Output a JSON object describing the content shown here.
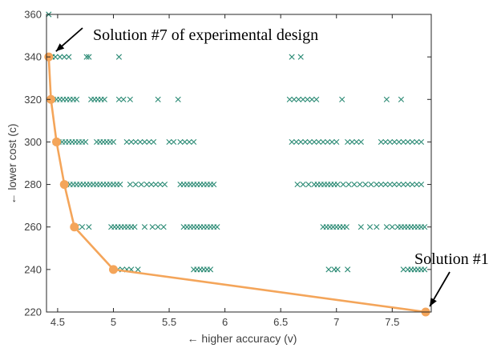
{
  "chart_data": {
    "type": "scatter",
    "xlabel": "← higher accuracy (v)",
    "ylabel": "← lower cost (c)",
    "xlim": [
      4.4,
      7.85
    ],
    "ylim": [
      220,
      360
    ],
    "xticks": [
      4.5,
      5,
      5.5,
      6,
      6.5,
      7,
      7.5
    ],
    "yticks": [
      220,
      240,
      260,
      280,
      300,
      320,
      340,
      360
    ],
    "grid": false,
    "colors": {
      "scatter": "#2a8a74",
      "front": "#f4a55a",
      "axis": "#262626"
    },
    "scatter_series": {
      "marker": "x",
      "points": [
        [
          4.42,
          360
        ],
        [
          4.45,
          340
        ],
        [
          4.48,
          340
        ],
        [
          4.52,
          340
        ],
        [
          4.56,
          340
        ],
        [
          4.6,
          340
        ],
        [
          4.76,
          340
        ],
        [
          4.78,
          340
        ],
        [
          5.05,
          340
        ],
        [
          6.6,
          340
        ],
        [
          6.68,
          340
        ],
        [
          4.46,
          320
        ],
        [
          4.49,
          320
        ],
        [
          4.52,
          320
        ],
        [
          4.55,
          320
        ],
        [
          4.58,
          320
        ],
        [
          4.61,
          320
        ],
        [
          4.64,
          320
        ],
        [
          4.67,
          320
        ],
        [
          4.8,
          320
        ],
        [
          4.83,
          320
        ],
        [
          4.86,
          320
        ],
        [
          4.89,
          320
        ],
        [
          4.92,
          320
        ],
        [
          5.05,
          320
        ],
        [
          5.09,
          320
        ],
        [
          5.15,
          320
        ],
        [
          5.4,
          320
        ],
        [
          5.58,
          320
        ],
        [
          6.58,
          320
        ],
        [
          6.62,
          320
        ],
        [
          6.66,
          320
        ],
        [
          6.7,
          320
        ],
        [
          6.74,
          320
        ],
        [
          6.78,
          320
        ],
        [
          6.82,
          320
        ],
        [
          7.05,
          320
        ],
        [
          7.45,
          320
        ],
        [
          7.58,
          320
        ],
        [
          4.48,
          300
        ],
        [
          4.51,
          300
        ],
        [
          4.54,
          300
        ],
        [
          4.57,
          300
        ],
        [
          4.6,
          300
        ],
        [
          4.63,
          300
        ],
        [
          4.66,
          300
        ],
        [
          4.69,
          300
        ],
        [
          4.72,
          300
        ],
        [
          4.75,
          300
        ],
        [
          4.85,
          300
        ],
        [
          4.88,
          300
        ],
        [
          4.91,
          300
        ],
        [
          4.94,
          300
        ],
        [
          4.97,
          300
        ],
        [
          5.0,
          300
        ],
        [
          5.12,
          300
        ],
        [
          5.16,
          300
        ],
        [
          5.2,
          300
        ],
        [
          5.24,
          300
        ],
        [
          5.28,
          300
        ],
        [
          5.32,
          300
        ],
        [
          5.36,
          300
        ],
        [
          5.5,
          300
        ],
        [
          5.54,
          300
        ],
        [
          5.6,
          300
        ],
        [
          5.64,
          300
        ],
        [
          5.68,
          300
        ],
        [
          5.72,
          300
        ],
        [
          6.6,
          300
        ],
        [
          6.64,
          300
        ],
        [
          6.68,
          300
        ],
        [
          6.72,
          300
        ],
        [
          6.76,
          300
        ],
        [
          6.8,
          300
        ],
        [
          6.84,
          300
        ],
        [
          6.88,
          300
        ],
        [
          6.92,
          300
        ],
        [
          6.96,
          300
        ],
        [
          7.0,
          300
        ],
        [
          7.1,
          300
        ],
        [
          7.14,
          300
        ],
        [
          7.18,
          300
        ],
        [
          7.22,
          300
        ],
        [
          7.4,
          300
        ],
        [
          7.44,
          300
        ],
        [
          7.48,
          300
        ],
        [
          7.52,
          300
        ],
        [
          7.56,
          300
        ],
        [
          7.6,
          300
        ],
        [
          7.64,
          300
        ],
        [
          7.68,
          300
        ],
        [
          7.72,
          300
        ],
        [
          7.76,
          300
        ],
        [
          4.58,
          280
        ],
        [
          4.61,
          280
        ],
        [
          4.64,
          280
        ],
        [
          4.67,
          280
        ],
        [
          4.7,
          280
        ],
        [
          4.73,
          280
        ],
        [
          4.76,
          280
        ],
        [
          4.79,
          280
        ],
        [
          4.82,
          280
        ],
        [
          4.85,
          280
        ],
        [
          4.88,
          280
        ],
        [
          4.91,
          280
        ],
        [
          4.94,
          280
        ],
        [
          4.97,
          280
        ],
        [
          5.0,
          280
        ],
        [
          5.03,
          280
        ],
        [
          5.06,
          280
        ],
        [
          5.15,
          280
        ],
        [
          5.2,
          280
        ],
        [
          5.25,
          280
        ],
        [
          5.3,
          280
        ],
        [
          5.34,
          280
        ],
        [
          5.38,
          280
        ],
        [
          5.42,
          280
        ],
        [
          5.46,
          280
        ],
        [
          5.6,
          280
        ],
        [
          5.63,
          280
        ],
        [
          5.66,
          280
        ],
        [
          5.69,
          280
        ],
        [
          5.72,
          280
        ],
        [
          5.75,
          280
        ],
        [
          5.78,
          280
        ],
        [
          5.81,
          280
        ],
        [
          5.84,
          280
        ],
        [
          5.87,
          280
        ],
        [
          5.9,
          280
        ],
        [
          6.65,
          280
        ],
        [
          6.7,
          280
        ],
        [
          6.75,
          280
        ],
        [
          6.8,
          280
        ],
        [
          6.83,
          280
        ],
        [
          6.86,
          280
        ],
        [
          6.89,
          280
        ],
        [
          6.92,
          280
        ],
        [
          6.95,
          280
        ],
        [
          6.98,
          280
        ],
        [
          7.01,
          280
        ],
        [
          7.06,
          280
        ],
        [
          7.11,
          280
        ],
        [
          7.16,
          280
        ],
        [
          7.21,
          280
        ],
        [
          7.26,
          280
        ],
        [
          7.31,
          280
        ],
        [
          7.36,
          280
        ],
        [
          7.4,
          280
        ],
        [
          7.44,
          280
        ],
        [
          7.48,
          280
        ],
        [
          7.52,
          280
        ],
        [
          7.56,
          280
        ],
        [
          7.6,
          280
        ],
        [
          7.64,
          280
        ],
        [
          7.68,
          280
        ],
        [
          7.72,
          280
        ],
        [
          7.76,
          280
        ],
        [
          4.67,
          260
        ],
        [
          4.72,
          260
        ],
        [
          4.78,
          260
        ],
        [
          4.98,
          260
        ],
        [
          5.01,
          260
        ],
        [
          5.04,
          260
        ],
        [
          5.07,
          260
        ],
        [
          5.1,
          260
        ],
        [
          5.13,
          260
        ],
        [
          5.16,
          260
        ],
        [
          5.19,
          260
        ],
        [
          5.28,
          260
        ],
        [
          5.35,
          260
        ],
        [
          5.4,
          260
        ],
        [
          5.45,
          260
        ],
        [
          5.63,
          260
        ],
        [
          5.66,
          260
        ],
        [
          5.69,
          260
        ],
        [
          5.72,
          260
        ],
        [
          5.75,
          260
        ],
        [
          5.78,
          260
        ],
        [
          5.81,
          260
        ],
        [
          5.84,
          260
        ],
        [
          5.87,
          260
        ],
        [
          5.9,
          260
        ],
        [
          5.93,
          260
        ],
        [
          6.88,
          260
        ],
        [
          6.91,
          260
        ],
        [
          6.94,
          260
        ],
        [
          6.97,
          260
        ],
        [
          7.0,
          260
        ],
        [
          7.03,
          260
        ],
        [
          7.06,
          260
        ],
        [
          7.09,
          260
        ],
        [
          7.22,
          260
        ],
        [
          7.3,
          260
        ],
        [
          7.36,
          260
        ],
        [
          7.45,
          260
        ],
        [
          7.5,
          260
        ],
        [
          7.55,
          260
        ],
        [
          7.58,
          260
        ],
        [
          7.61,
          260
        ],
        [
          7.64,
          260
        ],
        [
          7.67,
          260
        ],
        [
          7.7,
          260
        ],
        [
          7.73,
          260
        ],
        [
          7.76,
          260
        ],
        [
          7.79,
          260
        ],
        [
          5.0,
          240
        ],
        [
          5.04,
          240
        ],
        [
          5.08,
          240
        ],
        [
          5.12,
          240
        ],
        [
          5.16,
          240
        ],
        [
          5.22,
          240
        ],
        [
          5.72,
          240
        ],
        [
          5.75,
          240
        ],
        [
          5.78,
          240
        ],
        [
          5.81,
          240
        ],
        [
          5.84,
          240
        ],
        [
          5.87,
          240
        ],
        [
          6.93,
          240
        ],
        [
          6.98,
          240
        ],
        [
          7.01,
          240
        ],
        [
          7.1,
          240
        ],
        [
          7.6,
          240
        ],
        [
          7.64,
          240
        ],
        [
          7.67,
          240
        ],
        [
          7.7,
          240
        ],
        [
          7.73,
          240
        ],
        [
          7.76,
          240
        ],
        [
          7.79,
          240
        ]
      ]
    },
    "pareto_front": {
      "marker": "o",
      "points": [
        [
          4.42,
          340
        ],
        [
          4.44,
          320
        ],
        [
          4.49,
          300
        ],
        [
          4.56,
          280
        ],
        [
          4.65,
          260
        ],
        [
          5.0,
          240
        ],
        [
          7.8,
          220
        ]
      ]
    },
    "annotations": [
      {
        "text": "Solution #7 of experimental design",
        "target": [
          4.42,
          340
        ]
      },
      {
        "text": "Solution #1",
        "target": [
          7.8,
          220
        ]
      }
    ]
  }
}
